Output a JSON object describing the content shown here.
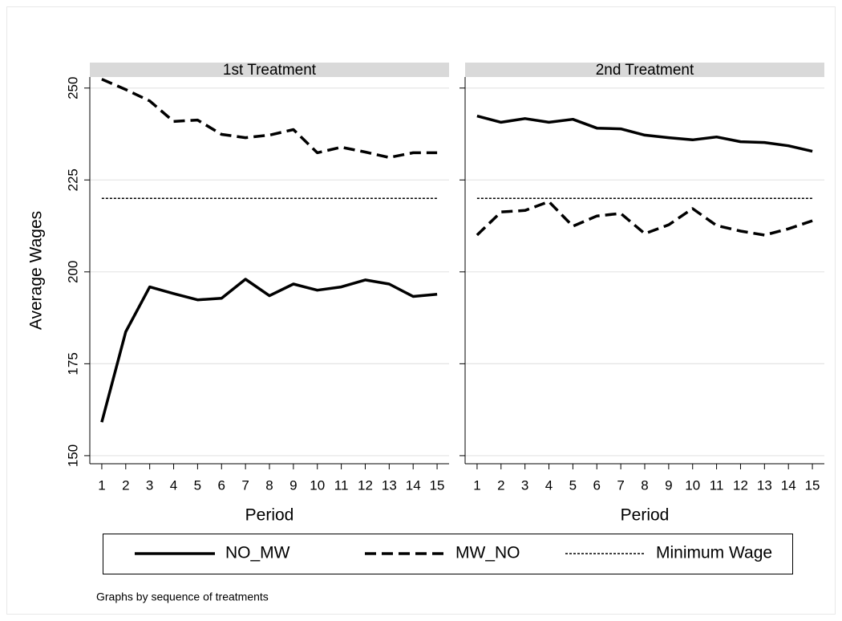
{
  "chart_data": [
    {
      "type": "line",
      "title": "1st Treatment",
      "y_label": "Average Wages",
      "x_label": "Period",
      "x": [
        1,
        2,
        3,
        4,
        5,
        6,
        7,
        8,
        9,
        10,
        11,
        12,
        13,
        14,
        15
      ],
      "xlim": [
        0.5,
        15.5
      ],
      "xticks": [
        1,
        2,
        3,
        4,
        5,
        6,
        7,
        8,
        9,
        10,
        11,
        12,
        13,
        14,
        15
      ],
      "ylim": [
        147.8,
        253
      ],
      "yticks": [
        150,
        175,
        200,
        225,
        250
      ],
      "grid": true,
      "series": [
        {
          "style": "solid",
          "color": "#000000",
          "values": [
            159.1,
            183.7,
            195.9,
            194.1,
            192.4,
            192.8,
            198.0,
            193.5,
            196.7,
            195.0,
            195.9,
            197.8,
            196.7,
            193.3,
            193.9
          ]
        },
        {
          "style": "dash",
          "color": "#000000",
          "values": [
            252.4,
            249.6,
            246.5,
            240.9,
            241.3,
            237.4,
            236.5,
            237.2,
            238.7,
            232.4,
            233.9,
            232.6,
            231.1,
            232.4,
            232.4
          ]
        },
        {
          "style": "dot",
          "color": "#000000",
          "values": [
            220,
            220,
            220,
            220,
            220,
            220,
            220,
            220,
            220,
            220,
            220,
            220,
            220,
            220,
            220
          ]
        }
      ]
    },
    {
      "type": "line",
      "title": "2nd Treatment",
      "x_label": "Period",
      "x": [
        1,
        2,
        3,
        4,
        5,
        6,
        7,
        8,
        9,
        10,
        11,
        12,
        13,
        14,
        15
      ],
      "xlim": [
        0.5,
        15.5
      ],
      "xticks": [
        1,
        2,
        3,
        4,
        5,
        6,
        7,
        8,
        9,
        10,
        11,
        12,
        13,
        14,
        15
      ],
      "ylim": [
        147.8,
        253
      ],
      "yticks": [
        150,
        175,
        200,
        225,
        250
      ],
      "grid": true,
      "series": [
        {
          "style": "solid",
          "color": "#000000",
          "values": [
            242.4,
            240.7,
            241.7,
            240.7,
            241.5,
            239.1,
            238.9,
            237.2,
            236.5,
            235.9,
            236.7,
            235.4,
            235.2,
            234.3,
            232.8
          ]
        },
        {
          "style": "dash",
          "color": "#000000",
          "values": [
            210.0,
            216.3,
            216.7,
            219.1,
            212.4,
            215.2,
            215.9,
            210.4,
            212.8,
            217.2,
            212.6,
            211.1,
            210.0,
            211.7,
            213.9
          ]
        },
        {
          "style": "dot",
          "color": "#000000",
          "values": [
            220,
            220,
            220,
            220,
            220,
            220,
            220,
            220,
            220,
            220,
            220,
            220,
            220,
            220,
            220
          ]
        }
      ]
    }
  ],
  "legend": [
    {
      "label": "NO_MW",
      "style": "solid"
    },
    {
      "label": "MW_NO",
      "style": "dash"
    },
    {
      "label": "Minimum Wage",
      "style": "dot"
    }
  ],
  "note": "Graphs by sequence of treatments"
}
